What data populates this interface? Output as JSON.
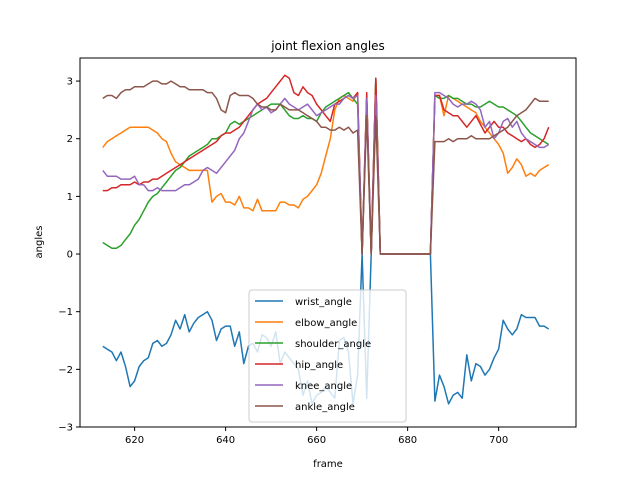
{
  "chart_data": {
    "type": "line",
    "title": "joint flexion angles",
    "xlabel": "frame",
    "ylabel": "angles",
    "xlim": [
      608,
      717
    ],
    "ylim": [
      -3,
      3.4
    ],
    "xticks": [
      620,
      640,
      660,
      680,
      700
    ],
    "yticks": [
      -3,
      -2,
      -1,
      0,
      1,
      2,
      3
    ],
    "grid": false,
    "legend_position": "bottom-center",
    "x_start": 613,
    "series": [
      {
        "name": "wrist_angle",
        "color": "#1f77b4",
        "values": [
          -1.6,
          -1.65,
          -1.7,
          -1.85,
          -1.7,
          -1.95,
          -2.3,
          -2.2,
          -1.95,
          -1.85,
          -1.8,
          -1.55,
          -1.5,
          -1.6,
          -1.55,
          -1.4,
          -1.15,
          -1.3,
          -1.05,
          -1.35,
          -1.2,
          -1.1,
          -1.05,
          -1.0,
          -1.15,
          -1.5,
          -1.3,
          -1.25,
          -1.25,
          -1.6,
          -1.35,
          -1.9,
          -1.6,
          -1.55,
          -1.7,
          -1.4,
          -1.45,
          -1.6,
          -1.35,
          -1.9,
          -1.7,
          -1.8,
          -1.9,
          -2.0,
          -2.45,
          -2.2,
          -2.6,
          -2.45,
          -2.4,
          -2.3,
          -2.4,
          -2.5,
          -1.5,
          -1.45,
          -1.7,
          -2.6,
          -2.1,
          0.0,
          -2.5,
          0.0,
          3.05,
          0.0,
          0.0,
          0.0,
          0.0,
          0.0,
          0.0,
          0.0,
          0.0,
          0.0,
          0.0,
          0.0,
          0.0,
          -2.55,
          -2.1,
          -2.3,
          -2.6,
          -2.45,
          -2.4,
          -2.5,
          -1.75,
          -2.2,
          -1.9,
          -1.95,
          -2.1,
          -2.0,
          -1.8,
          -1.65,
          -1.15,
          -1.3,
          -1.4,
          -1.3,
          -1.05,
          -1.1,
          -1.1,
          -1.1,
          -1.25,
          -1.25,
          -1.3
        ]
      },
      {
        "name": "elbow_angle",
        "color": "#ff7f0e",
        "values": [
          1.85,
          1.95,
          2.0,
          2.05,
          2.1,
          2.15,
          2.2,
          2.2,
          2.2,
          2.2,
          2.2,
          2.15,
          2.1,
          2.0,
          1.95,
          1.75,
          1.6,
          1.55,
          1.5,
          1.45,
          1.45,
          1.45,
          1.45,
          1.45,
          0.9,
          1.0,
          1.05,
          0.9,
          0.9,
          0.85,
          1.0,
          0.8,
          0.8,
          0.75,
          0.95,
          0.75,
          0.75,
          0.75,
          0.75,
          0.9,
          0.9,
          0.85,
          0.85,
          0.8,
          0.95,
          1.0,
          1.1,
          1.2,
          1.4,
          1.7,
          2.0,
          2.5,
          2.7,
          2.75,
          2.7,
          2.65,
          2.8,
          0.0,
          2.7,
          0.0,
          3.0,
          0.0,
          0.0,
          0.0,
          0.0,
          0.0,
          0.0,
          0.0,
          0.0,
          0.0,
          0.0,
          0.0,
          0.0,
          2.75,
          2.75,
          2.4,
          2.75,
          2.7,
          2.65,
          2.6,
          2.55,
          2.5,
          2.45,
          2.3,
          2.2,
          2.1,
          2.0,
          1.9,
          1.75,
          1.4,
          1.5,
          1.65,
          1.55,
          1.35,
          1.4,
          1.35,
          1.45,
          1.5,
          1.55
        ]
      },
      {
        "name": "shoulder_angle",
        "color": "#2ca02c",
        "values": [
          0.2,
          0.15,
          0.1,
          0.1,
          0.15,
          0.25,
          0.35,
          0.5,
          0.6,
          0.75,
          0.9,
          1.0,
          1.05,
          1.15,
          1.25,
          1.35,
          1.45,
          1.5,
          1.6,
          1.7,
          1.75,
          1.8,
          1.85,
          1.9,
          2.0,
          2.0,
          2.05,
          2.1,
          2.25,
          2.3,
          2.25,
          2.3,
          2.35,
          2.4,
          2.45,
          2.5,
          2.55,
          2.6,
          2.6,
          2.6,
          2.5,
          2.4,
          2.35,
          2.35,
          2.4,
          2.35,
          2.35,
          2.3,
          2.45,
          2.55,
          2.6,
          2.65,
          2.7,
          2.75,
          2.8,
          2.7,
          2.6,
          0.0,
          2.7,
          0.0,
          3.0,
          0.0,
          0.0,
          0.0,
          0.0,
          0.0,
          0.0,
          0.0,
          0.0,
          0.0,
          0.0,
          0.0,
          0.0,
          2.75,
          2.7,
          2.7,
          2.75,
          2.7,
          2.7,
          2.65,
          2.6,
          2.6,
          2.55,
          2.55,
          2.6,
          2.65,
          2.6,
          2.55,
          2.55,
          2.5,
          2.45,
          2.4,
          2.3,
          2.2,
          2.1,
          2.05,
          2.0,
          1.95,
          1.9
        ]
      },
      {
        "name": "hip_angle",
        "color": "#d62728",
        "values": [
          1.1,
          1.1,
          1.15,
          1.15,
          1.2,
          1.2,
          1.2,
          1.25,
          1.2,
          1.25,
          1.25,
          1.3,
          1.3,
          1.35,
          1.4,
          1.45,
          1.5,
          1.55,
          1.6,
          1.65,
          1.7,
          1.75,
          1.8,
          1.85,
          1.9,
          1.95,
          2.05,
          2.1,
          2.1,
          2.15,
          2.2,
          2.3,
          2.4,
          2.5,
          2.6,
          2.65,
          2.7,
          2.8,
          2.9,
          3.0,
          3.1,
          3.05,
          2.8,
          2.75,
          2.9,
          2.8,
          2.75,
          2.6,
          2.5,
          2.4,
          2.3,
          2.6,
          2.65,
          2.7,
          2.75,
          2.7,
          2.8,
          0.0,
          2.8,
          0.0,
          3.05,
          0.0,
          0.0,
          0.0,
          0.0,
          0.0,
          0.0,
          0.0,
          0.0,
          0.0,
          0.0,
          0.0,
          0.0,
          2.75,
          2.75,
          2.5,
          2.45,
          2.4,
          2.4,
          2.3,
          2.2,
          2.3,
          2.4,
          2.25,
          2.1,
          2.2,
          2.3,
          2.2,
          2.2,
          2.1,
          2.05,
          2.0,
          1.95,
          2.0,
          1.9,
          1.85,
          1.9,
          2.0,
          2.2
        ]
      },
      {
        "name": "knee_angle",
        "color": "#9467bd",
        "values": [
          1.45,
          1.35,
          1.35,
          1.35,
          1.3,
          1.3,
          1.3,
          1.35,
          1.2,
          1.2,
          1.1,
          1.1,
          1.15,
          1.1,
          1.1,
          1.1,
          1.1,
          1.15,
          1.2,
          1.2,
          1.25,
          1.3,
          1.45,
          1.5,
          1.45,
          1.4,
          1.5,
          1.6,
          1.7,
          1.8,
          2.0,
          2.1,
          2.3,
          2.5,
          2.6,
          2.5,
          2.55,
          2.45,
          2.5,
          2.6,
          2.7,
          2.6,
          2.55,
          2.5,
          2.55,
          2.6,
          2.5,
          2.4,
          2.45,
          2.5,
          2.55,
          2.6,
          2.6,
          2.7,
          2.75,
          2.7,
          2.75,
          0.0,
          2.7,
          0.0,
          2.75,
          0.0,
          0.0,
          0.0,
          0.0,
          0.0,
          0.0,
          0.0,
          0.0,
          0.0,
          0.0,
          0.0,
          0.0,
          2.8,
          2.8,
          2.75,
          2.7,
          2.6,
          2.55,
          2.6,
          2.6,
          2.65,
          2.6,
          2.5,
          2.2,
          2.3,
          2.0,
          2.1,
          2.3,
          2.35,
          2.2,
          2.3,
          2.1,
          2.0,
          1.95,
          1.9,
          1.85,
          1.85,
          1.9
        ]
      },
      {
        "name": "ankle_angle",
        "color": "#8c564b",
        "values": [
          2.7,
          2.75,
          2.75,
          2.7,
          2.8,
          2.85,
          2.85,
          2.9,
          2.9,
          2.9,
          2.95,
          3.0,
          3.0,
          2.95,
          2.95,
          3.0,
          2.95,
          2.9,
          2.9,
          2.85,
          2.85,
          2.85,
          2.85,
          2.8,
          2.8,
          2.7,
          2.5,
          2.45,
          2.75,
          2.8,
          2.75,
          2.75,
          2.75,
          2.7,
          2.6,
          2.55,
          2.55,
          2.5,
          2.5,
          2.6,
          2.55,
          2.5,
          2.5,
          2.5,
          2.45,
          2.4,
          2.35,
          2.3,
          2.2,
          2.2,
          2.15,
          2.15,
          2.2,
          2.15,
          2.2,
          2.1,
          2.15,
          0.0,
          2.4,
          0.0,
          2.4,
          0.0,
          0.0,
          0.0,
          0.0,
          0.0,
          0.0,
          0.0,
          0.0,
          0.0,
          0.0,
          0.0,
          0.0,
          1.95,
          1.95,
          1.95,
          2.0,
          1.95,
          2.0,
          2.0,
          2.0,
          2.05,
          2.0,
          2.0,
          2.0,
          2.0,
          2.05,
          2.1,
          2.15,
          2.2,
          2.3,
          2.4,
          2.45,
          2.5,
          2.6,
          2.7,
          2.65,
          2.65,
          2.65
        ]
      }
    ]
  }
}
